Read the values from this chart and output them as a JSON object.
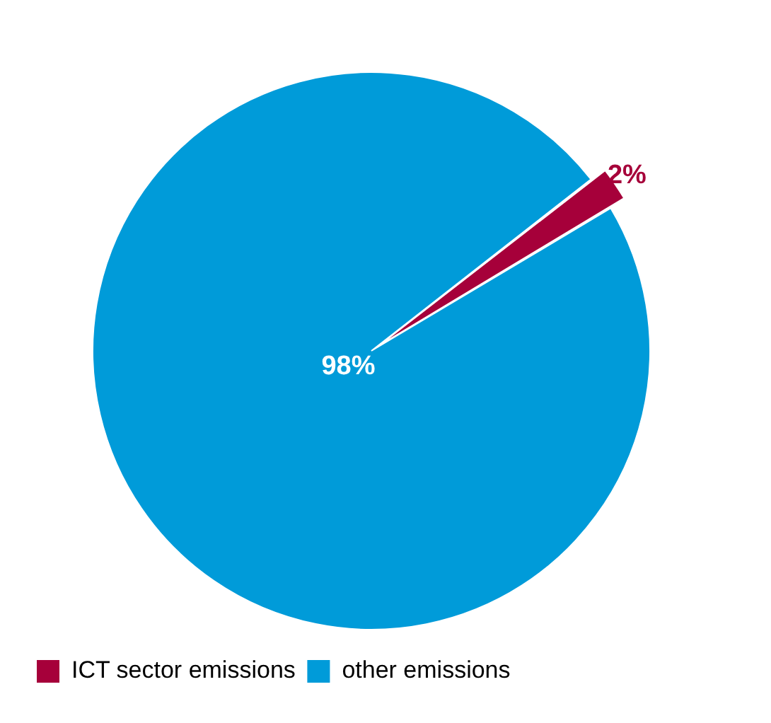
{
  "chart_data": {
    "type": "pie",
    "categories": [
      "ICT sector emissions",
      "other emissions"
    ],
    "values": [
      2,
      98
    ],
    "colors": [
      "#a6003a",
      "#009bd9"
    ],
    "value_labels": [
      "2%",
      "98%"
    ],
    "legend": "bottom left"
  }
}
